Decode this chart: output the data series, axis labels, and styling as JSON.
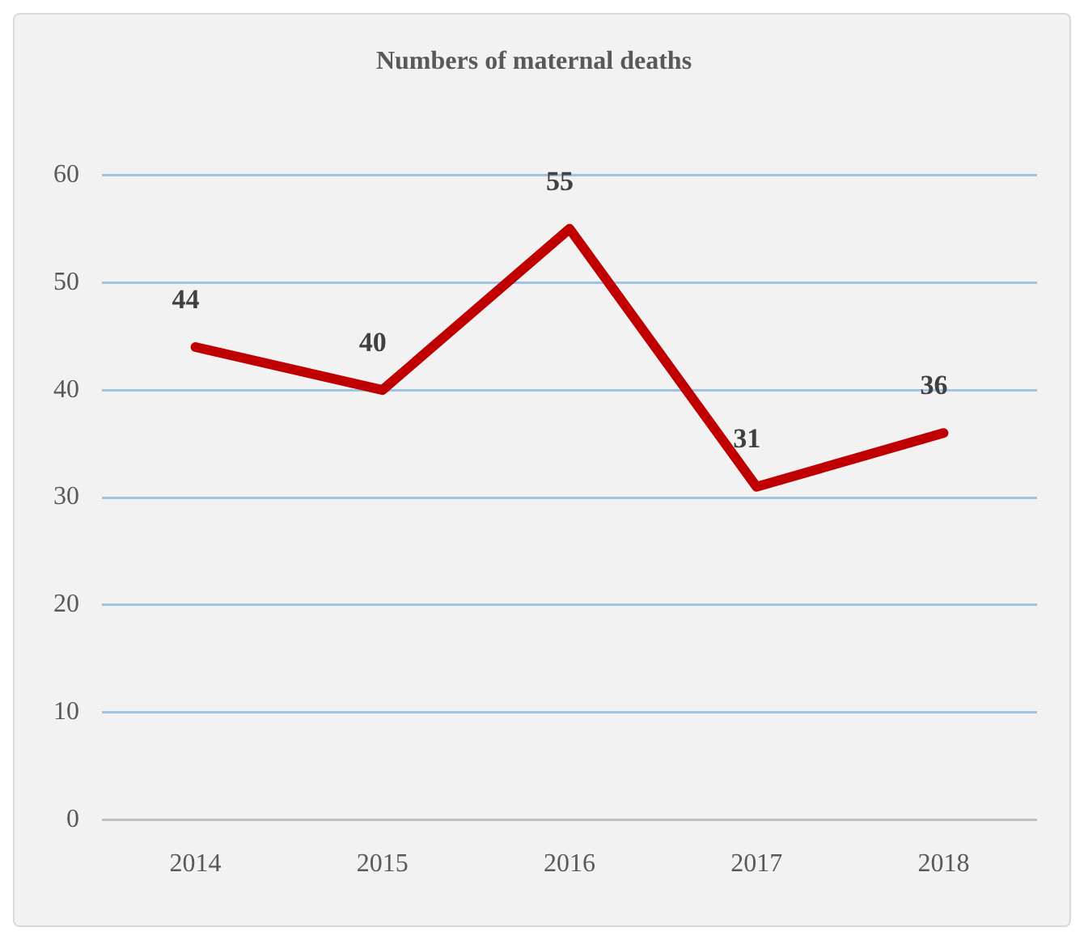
{
  "chart_data": {
    "type": "line",
    "title": "Numbers of maternal deaths",
    "categories": [
      "2014",
      "2015",
      "2016",
      "2017",
      "2018"
    ],
    "series": [
      {
        "color": "#c00000",
        "values": [
          44,
          40,
          55,
          31,
          36
        ]
      }
    ],
    "ylim": [
      0,
      60
    ],
    "yticks": [
      0,
      10,
      20,
      30,
      40,
      50,
      60
    ],
    "grid": "y",
    "legend": false,
    "marker": "none",
    "line_style": "solid",
    "data_labels": true
  }
}
